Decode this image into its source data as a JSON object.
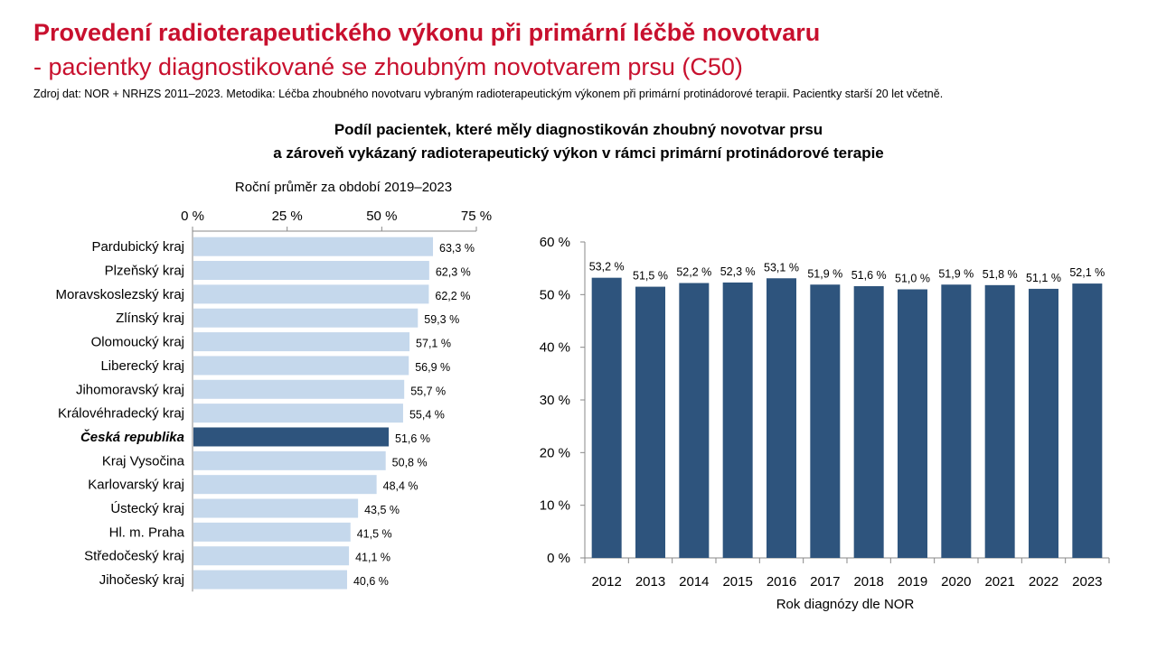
{
  "header": {
    "title_line1": "Provedení radioterapeutického výkonu při primární léčbě novotvaru",
    "title_line2": "- pacientky diagnostikované se zhoubným novotvarem prsu (C50)",
    "source": "Zdroj dat: NOR + NRHZS 2011–2023. Metodika: Léčba zhoubného novotvaru vybraným radioterapeutickým výkonem při primární protinádorové terapii. Pacientky starší 20 let včetně."
  },
  "figure": {
    "heading_line1": "Podíl pacientek, které měly diagnostikován zhoubný novotvar prsu",
    "heading_line2": "a zároveň vykázaný radioterapeutický výkon v rámci primární protinádorové terapie"
  },
  "colors": {
    "title": "#c8102e",
    "bar_light": "#c5d8ec",
    "bar_dark": "#2e547d"
  },
  "chart_data": [
    {
      "type": "bar",
      "orientation": "horizontal",
      "title": "Roční průměr za období 2019–2023",
      "xlim": [
        0,
        75
      ],
      "ticks": [
        "0 %",
        "25 %",
        "50 %",
        "75 %"
      ],
      "tick_values": [
        0,
        25,
        50,
        75
      ],
      "highlight": "Česká republika",
      "categories": [
        "Pardubický kraj",
        "Plzeňský kraj",
        "Moravskoslezský kraj",
        "Zlínský kraj",
        "Olomoucký kraj",
        "Liberecký kraj",
        "Jihomoravský kraj",
        "Královéhradecký kraj",
        "Česká republika",
        "Kraj Vysočina",
        "Karlovarský kraj",
        "Ústecký kraj",
        "Hl. m. Praha",
        "Středočeský kraj",
        "Jihočeský kraj"
      ],
      "values": [
        63.3,
        62.3,
        62.2,
        59.3,
        57.1,
        56.9,
        55.7,
        55.4,
        51.6,
        50.8,
        48.4,
        43.5,
        41.5,
        41.1,
        40.6
      ],
      "labels": [
        "63,3 %",
        "62,3 %",
        "62,2 %",
        "59,3 %",
        "57,1 %",
        "56,9 %",
        "55,7 %",
        "55,4 %",
        "51,6 %",
        "50,8 %",
        "48,4 %",
        "43,5 %",
        "41,5 %",
        "41,1 %",
        "40,6 %"
      ]
    },
    {
      "type": "bar",
      "orientation": "vertical",
      "xlabel": "Rok diagnózy dle NOR",
      "ylim": [
        0,
        60
      ],
      "ticks": [
        "0 %",
        "10 %",
        "20 %",
        "30 %",
        "40 %",
        "50 %",
        "60 %"
      ],
      "tick_values": [
        0,
        10,
        20,
        30,
        40,
        50,
        60
      ],
      "categories": [
        "2012",
        "2013",
        "2014",
        "2015",
        "2016",
        "2017",
        "2018",
        "2019",
        "2020",
        "2021",
        "2022",
        "2023"
      ],
      "values": [
        53.2,
        51.5,
        52.2,
        52.3,
        53.1,
        51.9,
        51.6,
        51.0,
        51.9,
        51.8,
        51.1,
        52.1
      ],
      "labels": [
        "53,2 %",
        "51,5 %",
        "52,2 %",
        "52,3 %",
        "53,1 %",
        "51,9 %",
        "51,6 %",
        "51,0 %",
        "51,9 %",
        "51,8 %",
        "51,1 %",
        "52,1 %"
      ]
    }
  ]
}
